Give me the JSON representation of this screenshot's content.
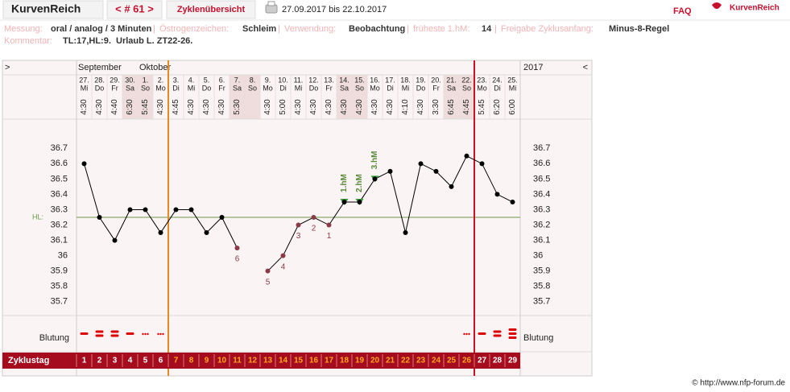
{
  "header": {
    "brand": "KurvenReich",
    "nav": "< # 61 >",
    "tab": "Zyklenübersicht",
    "period": "27.09.2017 bis 22.10.2017",
    "faq": "FAQ",
    "logo": "KurvenReich"
  },
  "info": {
    "separator": "|",
    "fields": [
      {
        "label": "Messung:",
        "value": "oral / analog / 3 Minuten"
      },
      {
        "label": "Östrogenzeichen:",
        "value": "Schleim"
      },
      {
        "label": "Verwendung:",
        "value": "Beobachtung"
      },
      {
        "label": "früheste 1.hM:",
        "value": "14"
      },
      {
        "label": "Freigabe Zyklusanfang:",
        "value": "Minus-8-Regel"
      }
    ],
    "comment": {
      "label": "Kommentar:",
      "value": "TL:17,HL:9.  Urlaub L. ZT22-26."
    }
  },
  "chart_data": {
    "type": "line",
    "nav_left": ">",
    "nav_right": "<",
    "months": [
      "September",
      "Oktober"
    ],
    "year": "2017",
    "dates": [
      "27.",
      "28.",
      "29.",
      "30.",
      "1.",
      "2.",
      "3.",
      "4.",
      "5.",
      "6.",
      "7.",
      "8.",
      "9.",
      "10.",
      "11.",
      "12.",
      "13.",
      "14.",
      "15.",
      "16.",
      "17.",
      "18.",
      "19.",
      "20.",
      "21.",
      "22.",
      "23.",
      "24.",
      "25."
    ],
    "weekdays": [
      "Mi",
      "Do",
      "Fr",
      "Sa",
      "So",
      "Mo",
      "Di",
      "Mi",
      "Do",
      "Fr",
      "Sa",
      "So",
      "Mo",
      "Di",
      "Mi",
      "Do",
      "Fr",
      "Sa",
      "So",
      "Mo",
      "Di",
      "Mi",
      "Do",
      "Fr",
      "Sa",
      "So",
      "Mo",
      "Di",
      "Mi"
    ],
    "times": [
      "4:30",
      "4:30",
      "4:40",
      "6:30",
      "5:45",
      "4:30",
      "4:45",
      "4:30",
      "4:30",
      "4:30",
      "5:30",
      null,
      "4:30",
      "5:00",
      "4:30",
      "4:30",
      "4:30",
      "4:30",
      "4:30",
      "4:30",
      "4:30",
      "4:10",
      "4:30",
      "3:30",
      "6:45",
      "4:45",
      "5:45",
      "6:20",
      "6:00"
    ],
    "categories": [
      1,
      2,
      3,
      4,
      5,
      6,
      7,
      8,
      9,
      10,
      11,
      12,
      13,
      14,
      15,
      16,
      17,
      18,
      19,
      20,
      21,
      22,
      23,
      24,
      25,
      26,
      27,
      28,
      29
    ],
    "values": [
      36.6,
      36.25,
      36.1,
      36.3,
      36.3,
      36.15,
      36.3,
      36.3,
      36.15,
      36.25,
      36.05,
      null,
      35.9,
      36.0,
      36.2,
      36.25,
      36.2,
      36.35,
      36.35,
      36.5,
      36.55,
      36.15,
      36.6,
      36.55,
      36.45,
      36.65,
      36.6,
      36.4,
      36.35
    ],
    "count_labels": [
      null,
      null,
      null,
      null,
      null,
      null,
      null,
      null,
      null,
      null,
      "6",
      null,
      "5",
      "4",
      "3",
      "2",
      "1",
      null,
      null,
      null,
      null,
      null,
      null,
      null,
      null,
      null,
      null,
      null,
      null
    ],
    "hm_labels": [
      null,
      null,
      null,
      null,
      null,
      null,
      null,
      null,
      null,
      null,
      null,
      null,
      null,
      null,
      null,
      null,
      null,
      "1.hM",
      "2.hM",
      "3.hM",
      null,
      null,
      null,
      null,
      null,
      null,
      null,
      null,
      null
    ],
    "color": "#000000",
    "ylim": [
      35.62,
      36.88
    ],
    "yticks": [
      35.7,
      35.8,
      35.9,
      36,
      36.1,
      36.2,
      36.3,
      36.4,
      36.5,
      36.6,
      36.7
    ],
    "hl": {
      "label": "HL:",
      "value": 36.25,
      "color": "#6a9a4a"
    },
    "markers": [
      {
        "day": 7,
        "color": "#e8891f"
      },
      {
        "day": 27,
        "color": "#d01020"
      }
    ],
    "bleeding": {
      "label": "Blutung",
      "values": [
        2,
        3,
        3,
        2,
        1,
        1,
        null,
        null,
        null,
        null,
        null,
        null,
        null,
        null,
        null,
        null,
        null,
        null,
        null,
        null,
        null,
        null,
        null,
        null,
        null,
        1,
        2,
        3,
        4
      ]
    },
    "day_label": "Zyklustag"
  },
  "footer": "© http://www.nfp-forum.de"
}
